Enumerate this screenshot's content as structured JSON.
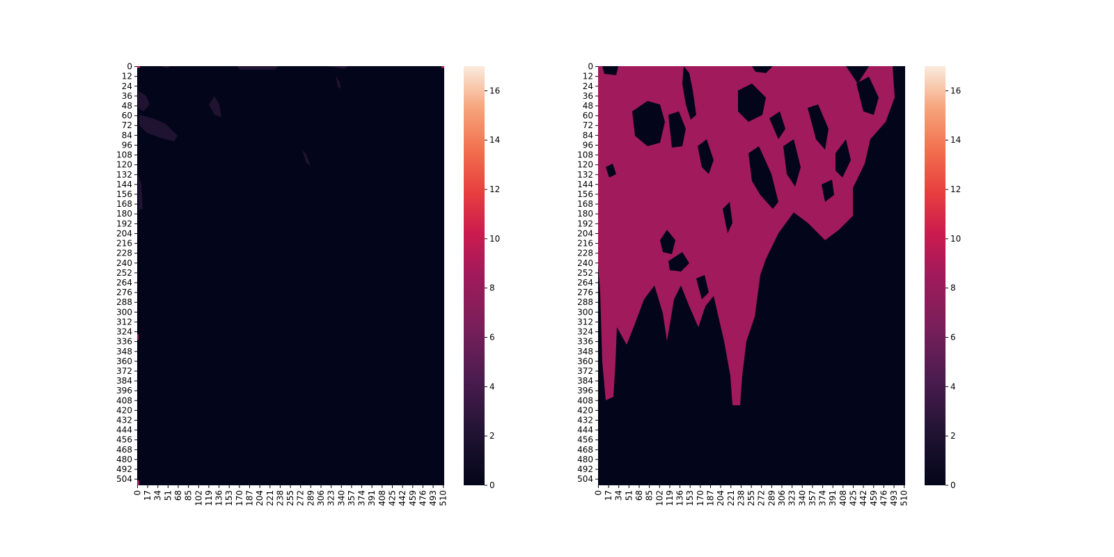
{
  "chart_data": [
    {
      "type": "heatmap",
      "title": "",
      "xlabel": "",
      "ylabel": "",
      "xticks": [
        0,
        17,
        34,
        51,
        68,
        85,
        102,
        119,
        136,
        153,
        170,
        187,
        204,
        221,
        238,
        255,
        272,
        289,
        306,
        323,
        340,
        357,
        374,
        391,
        408,
        425,
        442,
        459,
        476,
        493,
        510
      ],
      "yticks": [
        0,
        12,
        24,
        36,
        48,
        60,
        72,
        84,
        96,
        108,
        120,
        132,
        144,
        156,
        168,
        180,
        192,
        204,
        216,
        228,
        240,
        252,
        264,
        276,
        288,
        300,
        312,
        324,
        336,
        348,
        360,
        372,
        384,
        396,
        408,
        420,
        432,
        444,
        456,
        468,
        480,
        492,
        504
      ],
      "shape": [
        512,
        512
      ],
      "background_value": 0,
      "description_of_values": "nearly all cells 0; faint patches around 1 in upper-left; thin edge of ~8 along top row",
      "colorbar": {
        "range": [
          0,
          17
        ],
        "ticks": [
          0,
          2,
          4,
          6,
          8,
          10,
          12,
          14,
          16
        ]
      },
      "colors": {
        "low": "#03051a",
        "mid": "#a11a5b",
        "high": "#faebdd"
      }
    },
    {
      "type": "heatmap",
      "title": "",
      "xlabel": "",
      "ylabel": "",
      "xticks": [
        0,
        17,
        34,
        51,
        68,
        85,
        102,
        119,
        136,
        153,
        170,
        187,
        204,
        221,
        238,
        255,
        272,
        289,
        306,
        323,
        340,
        357,
        374,
        391,
        408,
        425,
        442,
        459,
        476,
        493,
        510
      ],
      "yticks": [
        0,
        12,
        24,
        36,
        48,
        60,
        72,
        84,
        96,
        108,
        120,
        132,
        144,
        156,
        168,
        180,
        192,
        204,
        216,
        228,
        240,
        252,
        264,
        276,
        288,
        300,
        312,
        324,
        336,
        348,
        360,
        372,
        384,
        396,
        408,
        420,
        432,
        444,
        456,
        468,
        480,
        492,
        504
      ],
      "shape": [
        512,
        512
      ],
      "values_present": [
        0,
        8
      ],
      "description_of_values": "binary mask: value 8 in a large upper region with a tongue reaching row ~420, value 0 elsewhere",
      "colorbar": {
        "range": [
          0,
          17
        ],
        "ticks": [
          0,
          2,
          4,
          6,
          8,
          10,
          12,
          14,
          16
        ]
      },
      "colors": {
        "low": "#03051a",
        "mid": "#a11a5b",
        "high": "#faebdd"
      }
    }
  ]
}
